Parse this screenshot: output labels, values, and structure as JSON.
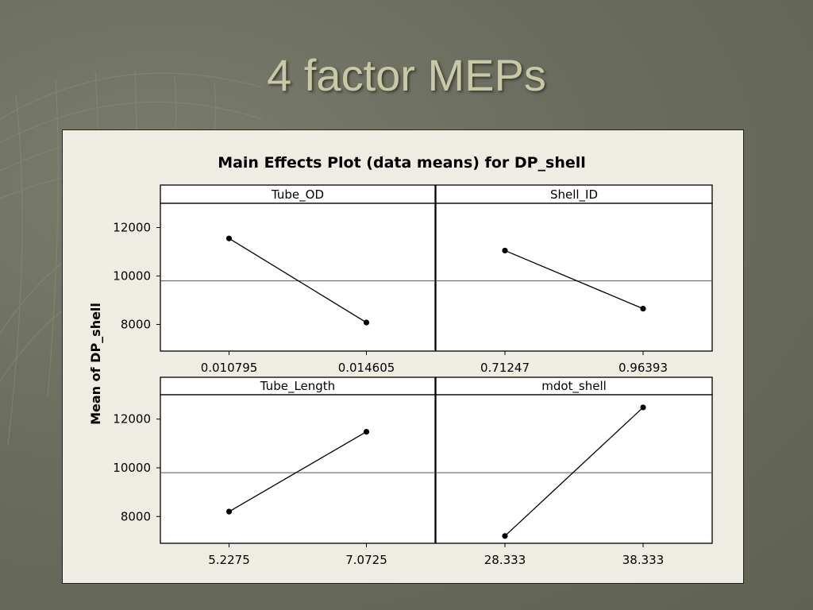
{
  "slide": {
    "title": "4 factor MEPs"
  },
  "chart_data": {
    "type": "line",
    "title": "Main Effects Plot (data means) for DP_shell",
    "ylabel": "Mean of DP_shell",
    "ylim": [
      6900,
      13000
    ],
    "yticks": [
      8000,
      10000,
      12000
    ],
    "grand_mean": 9800,
    "panels": [
      {
        "name": "Tube_OD",
        "x": [
          "0.010795",
          "0.014605"
        ],
        "values": [
          11550,
          8080
        ]
      },
      {
        "name": "Shell_ID",
        "x": [
          "0.71247",
          "0.96393"
        ],
        "values": [
          11050,
          8650
        ]
      },
      {
        "name": "Tube_Length",
        "x": [
          "5.2275",
          "7.0725"
        ],
        "values": [
          8200,
          11480
        ]
      },
      {
        "name": "mdot_shell",
        "x": [
          "28.333",
          "38.333"
        ],
        "values": [
          7200,
          12480
        ]
      }
    ],
    "colors": {
      "line": "#000000",
      "panel_bg": "#efece3",
      "plot_bg": "#ffffff"
    }
  }
}
